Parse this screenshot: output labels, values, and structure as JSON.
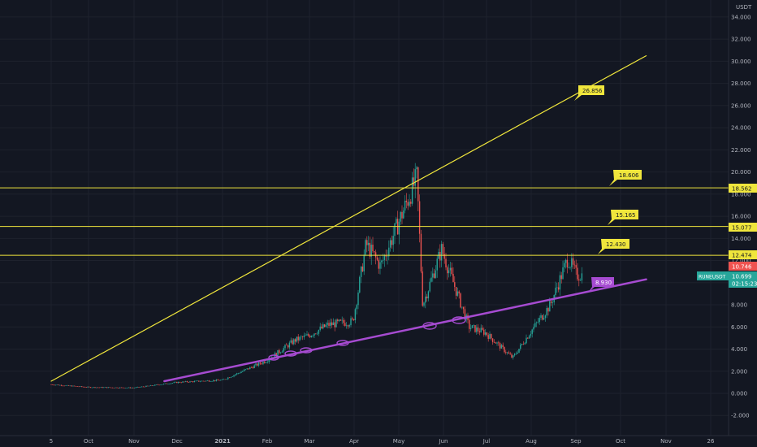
{
  "currency_label": "USDT",
  "price_tags": {
    "symbol": "RUNEUSDT",
    "last_price": "10.699",
    "countdown": "02:15:23",
    "high_marker": "10.746",
    "level_12": "12.474",
    "level_15": "15.077",
    "level_18": "18.562"
  },
  "callouts": {
    "upper_trend": "26.856",
    "level_18": "18.606",
    "level_15": "15.165",
    "level_12": "12.430",
    "support": "8.930"
  },
  "colors": {
    "background": "#131722",
    "grid": "#1e222d",
    "up": "#26a69a",
    "down": "#ef5350",
    "yellow": "#f0e63c",
    "purple": "#a64bd1",
    "axis_text": "#b2b5be"
  },
  "chart_data": {
    "type": "candlestick",
    "title": "",
    "symbol": "RUNEUSDT",
    "quote": "USDT",
    "x_ticks": [
      "5",
      "Oct",
      "Nov",
      "Dec",
      "2021",
      "Feb",
      "Mar",
      "Apr",
      "May",
      "Jun",
      "Jul",
      "Aug",
      "Sep",
      "Oct",
      "Nov",
      "26"
    ],
    "y_ticks": [
      "34.000",
      "32.000",
      "30.000",
      "28.000",
      "26.000",
      "24.000",
      "22.000",
      "20.000",
      "18.000",
      "16.000",
      "14.000",
      "12.000",
      "10.000",
      "8.000",
      "6.000",
      "4.000",
      "2.000",
      "0.000",
      "-2.000"
    ],
    "ylim": [
      -3.5,
      35
    ],
    "horizontal_levels": [
      12.474,
      15.077,
      18.562
    ],
    "trendlines": [
      {
        "from": [
          "2020-09-05",
          1.1
        ],
        "to": [
          "2021-10-20",
          30.5
        ],
        "color": "yellow"
      },
      {
        "from": [
          "2020-11-22",
          1.1
        ],
        "to": [
          "2021-10-20",
          10.3
        ],
        "color": "purple"
      }
    ],
    "price_path": [
      [
        "2020-09-05",
        0.8
      ],
      [
        "2020-10-01",
        0.55
      ],
      [
        "2020-11-01",
        0.5
      ],
      [
        "2020-12-01",
        1.0
      ],
      [
        "2021-01-01",
        1.2
      ],
      [
        "2021-02-01",
        3.0
      ],
      [
        "2021-02-20",
        4.8
      ],
      [
        "2021-03-01",
        5.2
      ],
      [
        "2021-03-15",
        6.2
      ],
      [
        "2021-04-01",
        6.5
      ],
      [
        "2021-04-10",
        13.5
      ],
      [
        "2021-04-20",
        11.5
      ],
      [
        "2021-05-01",
        15.0
      ],
      [
        "2021-05-15",
        19.5
      ],
      [
        "2021-05-19",
        8.0
      ],
      [
        "2021-06-01",
        13.0
      ],
      [
        "2021-06-20",
        6.0
      ],
      [
        "2021-07-01",
        5.5
      ],
      [
        "2021-07-20",
        3.2
      ],
      [
        "2021-08-01",
        5.5
      ],
      [
        "2021-08-15",
        8.0
      ],
      [
        "2021-08-27",
        12.2
      ],
      [
        "2021-09-02",
        10.7
      ]
    ]
  }
}
